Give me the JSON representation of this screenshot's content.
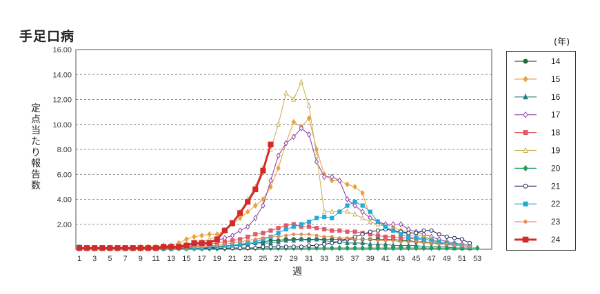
{
  "title": "手足口病",
  "chart_data": {
    "type": "line",
    "title": "手足口病",
    "ylabel": "定点当たり報告数",
    "xlabel": "週",
    "legend_unit": "(年)",
    "ylim": [
      0,
      16
    ],
    "yticks": [
      "16.00",
      "14.00",
      "12.00",
      "10.00",
      "8.00",
      "6.00",
      "4.00",
      "2.00"
    ],
    "xticks": [
      "1",
      "3",
      "5",
      "7",
      "9",
      "11",
      "13",
      "15",
      "17",
      "19",
      "21",
      "23",
      "25",
      "27",
      "29",
      "31",
      "33",
      "35",
      "37",
      "39",
      "41",
      "43",
      "45",
      "47",
      "49",
      "51",
      "53"
    ],
    "grid": "dashed horizontal",
    "legend_position": "right",
    "series": [
      {
        "name": "14",
        "color": "#1d6b3a",
        "marker": "circle-filled",
        "values": [
          0.1,
          0.1,
          0.1,
          0.1,
          0.1,
          0.1,
          0.1,
          0.1,
          0.1,
          0.1,
          0.1,
          0.1,
          0.1,
          0.1,
          0.1,
          0.1,
          0.1,
          0.1,
          0.2,
          0.2,
          0.3,
          0.3,
          0.4,
          0.5,
          0.6,
          0.7,
          0.7,
          0.8,
          0.8,
          0.8,
          0.8,
          0.8,
          0.8,
          0.8,
          0.8,
          0.8,
          0.8,
          0.8,
          0.8,
          0.8,
          0.8,
          0.8,
          0.7,
          0.7,
          0.6,
          0.6,
          0.5,
          0.5,
          0.4,
          0.4,
          0.3,
          0.2
        ]
      },
      {
        "name": "15",
        "color": "#e8a33d",
        "marker": "diamond-filled",
        "values": [
          0.1,
          0.1,
          0.1,
          0.1,
          0.1,
          0.1,
          0.1,
          0.1,
          0.2,
          0.2,
          0.2,
          0.3,
          0.3,
          0.5,
          0.8,
          1.0,
          1.1,
          1.2,
          1.2,
          1.5,
          2.0,
          2.5,
          3.0,
          3.5,
          4.0,
          5.0,
          6.5,
          8.5,
          10.2,
          9.8,
          10.5,
          8.0,
          6.0,
          5.5,
          5.5,
          5.2,
          5.0,
          4.5,
          2.5,
          2.2,
          2.0,
          1.8,
          1.5,
          1.4,
          1.2,
          1.0,
          0.8,
          0.6,
          0.5,
          0.4,
          0.3,
          0.2
        ]
      },
      {
        "name": "16",
        "color": "#2a7d7d",
        "marker": "triangle-filled",
        "values": [
          0.05,
          0.05,
          0.05,
          0.05,
          0.05,
          0.05,
          0.05,
          0.05,
          0.05,
          0.05,
          0.05,
          0.05,
          0.05,
          0.1,
          0.1,
          0.1,
          0.1,
          0.2,
          0.2,
          0.3,
          0.3,
          0.4,
          0.4,
          0.5,
          0.5,
          0.5,
          0.6,
          0.7,
          0.7,
          0.8,
          0.7,
          0.8,
          0.7,
          0.6,
          0.6,
          0.5,
          0.5,
          0.5,
          0.4,
          0.4,
          0.4,
          0.3,
          0.3,
          0.3,
          0.3,
          0.2,
          0.2,
          0.2,
          0.2,
          0.1,
          0.1,
          0.1
        ]
      },
      {
        "name": "17",
        "color": "#8e44ad",
        "marker": "diamond-open",
        "values": [
          0.1,
          0.1,
          0.1,
          0.1,
          0.1,
          0.1,
          0.1,
          0.1,
          0.1,
          0.1,
          0.1,
          0.1,
          0.1,
          0.2,
          0.2,
          0.3,
          0.4,
          0.5,
          0.7,
          0.9,
          1.1,
          1.5,
          1.8,
          2.5,
          3.5,
          5.5,
          7.5,
          8.5,
          9.0,
          9.7,
          9.2,
          7.0,
          5.8,
          5.8,
          5.5,
          4.0,
          3.5,
          3.0,
          2.5,
          2.2,
          2.0,
          2.0,
          2.0,
          1.6,
          1.4,
          1.2,
          1.0,
          0.8,
          0.6,
          0.5,
          0.4,
          0.3
        ]
      },
      {
        "name": "18",
        "color": "#e05a6a",
        "marker": "square-filled",
        "values": [
          0.1,
          0.1,
          0.1,
          0.1,
          0.1,
          0.1,
          0.1,
          0.1,
          0.1,
          0.1,
          0.1,
          0.1,
          0.1,
          0.1,
          0.2,
          0.2,
          0.3,
          0.4,
          0.5,
          0.6,
          0.7,
          0.8,
          1.0,
          1.2,
          1.3,
          1.5,
          1.7,
          1.9,
          2.0,
          1.8,
          1.8,
          1.7,
          1.6,
          1.5,
          1.5,
          1.4,
          1.4,
          1.3,
          1.2,
          1.1,
          1.0,
          1.0,
          0.9,
          0.9,
          0.8,
          0.8,
          0.7,
          0.6,
          0.5,
          0.4,
          0.3,
          0.2
        ]
      },
      {
        "name": "19",
        "color": "#c8b35a",
        "marker": "triangle-open",
        "values": [
          0.1,
          0.1,
          0.1,
          0.1,
          0.1,
          0.1,
          0.1,
          0.1,
          0.1,
          0.1,
          0.1,
          0.2,
          0.2,
          0.3,
          0.4,
          0.5,
          0.6,
          0.8,
          1.0,
          1.5,
          2.0,
          3.0,
          4.0,
          5.0,
          6.5,
          8.0,
          10.0,
          12.5,
          12.0,
          13.4,
          11.5,
          7.5,
          3.0,
          3.0,
          3.0,
          3.0,
          2.8,
          2.5,
          2.2,
          2.0,
          1.8,
          1.5,
          1.3,
          1.2,
          1.0,
          0.9,
          0.8,
          0.6,
          0.5,
          0.4,
          0.3,
          0.2
        ]
      },
      {
        "name": "20",
        "color": "#1e9e5a",
        "marker": "diamond-filled",
        "values": [
          0.05,
          0.05,
          0.05,
          0.05,
          0.05,
          0.05,
          0.05,
          0.05,
          0.05,
          0.05,
          0.05,
          0.05,
          0.05,
          0.05,
          0.05,
          0.05,
          0.05,
          0.05,
          0.05,
          0.05,
          0.1,
          0.1,
          0.1,
          0.1,
          0.1,
          0.1,
          0.1,
          0.1,
          0.1,
          0.1,
          0.1,
          0.1,
          0.1,
          0.1,
          0.1,
          0.1,
          0.1,
          0.1,
          0.1,
          0.1,
          0.1,
          0.1,
          0.1,
          0.1,
          0.1,
          0.1,
          0.1,
          0.1,
          0.1,
          0.1,
          0.1,
          0.1,
          0.1
        ]
      },
      {
        "name": "21",
        "color": "#1f2a5a",
        "marker": "circle-open",
        "values": [
          0.1,
          0.1,
          0.1,
          0.1,
          0.1,
          0.1,
          0.1,
          0.1,
          0.1,
          0.1,
          0.1,
          0.1,
          0.1,
          0.1,
          0.1,
          0.1,
          0.1,
          0.1,
          0.1,
          0.1,
          0.1,
          0.1,
          0.1,
          0.1,
          0.2,
          0.2,
          0.2,
          0.2,
          0.2,
          0.2,
          0.3,
          0.3,
          0.4,
          0.5,
          0.6,
          0.8,
          1.0,
          1.2,
          1.4,
          1.5,
          1.6,
          1.5,
          1.4,
          1.3,
          1.3,
          1.5,
          1.5,
          1.2,
          1.0,
          0.9,
          0.8,
          0.5
        ]
      },
      {
        "name": "22",
        "color": "#27a9d8",
        "marker": "square-filled",
        "values": [
          0.2,
          0.1,
          0.1,
          0.1,
          0.1,
          0.1,
          0.1,
          0.1,
          0.1,
          0.1,
          0.1,
          0.1,
          0.1,
          0.1,
          0.1,
          0.1,
          0.1,
          0.2,
          0.2,
          0.3,
          0.3,
          0.4,
          0.5,
          0.6,
          0.8,
          1.0,
          1.3,
          1.6,
          1.8,
          2.0,
          2.2,
          2.5,
          2.6,
          2.5,
          3.0,
          3.5,
          3.8,
          3.5,
          3.0,
          2.2,
          1.8,
          1.5,
          1.2,
          1.0,
          0.9,
          0.8,
          0.7,
          0.6,
          0.5,
          0.4,
          0.3,
          0.2
        ]
      },
      {
        "name": "23",
        "color": "#e08a5a",
        "marker": "star",
        "values": [
          0.1,
          0.1,
          0.1,
          0.1,
          0.1,
          0.1,
          0.1,
          0.1,
          0.1,
          0.1,
          0.1,
          0.1,
          0.1,
          0.1,
          0.1,
          0.2,
          0.2,
          0.3,
          0.3,
          0.4,
          0.5,
          0.6,
          0.7,
          0.8,
          0.9,
          1.0,
          1.0,
          1.1,
          1.2,
          1.2,
          1.2,
          1.1,
          1.0,
          1.0,
          0.9,
          0.9,
          0.8,
          0.8,
          0.8,
          0.7,
          0.7,
          0.7,
          0.6,
          0.6,
          0.6,
          0.5,
          0.5,
          0.4,
          0.4,
          0.3,
          0.3,
          0.2
        ]
      },
      {
        "name": "24",
        "color": "#d42a2a",
        "marker": "square-filled",
        "bold": true,
        "values": [
          0.1,
          0.1,
          0.1,
          0.1,
          0.1,
          0.1,
          0.1,
          0.1,
          0.1,
          0.1,
          0.1,
          0.2,
          0.2,
          0.2,
          0.3,
          0.5,
          0.5,
          0.5,
          0.8,
          1.5,
          2.1,
          2.9,
          3.8,
          4.8,
          6.3,
          8.4
        ]
      }
    ]
  }
}
